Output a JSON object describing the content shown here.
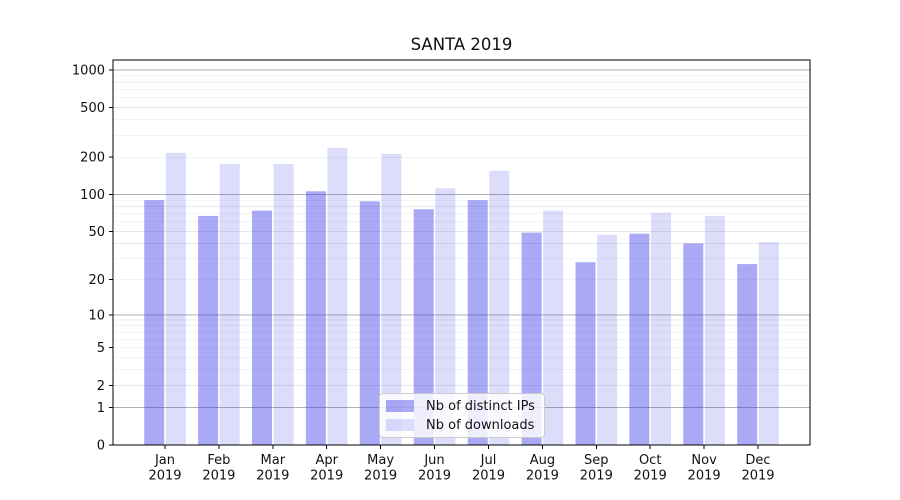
{
  "chart_data": {
    "type": "bar",
    "title": "SANTA 2019",
    "categories": [
      "Jan",
      "Feb",
      "Mar",
      "Apr",
      "May",
      "Jun",
      "Jul",
      "Aug",
      "Sep",
      "Oct",
      "Nov",
      "Dec"
    ],
    "year_label": "2019",
    "series": [
      {
        "name": "Nb of distinct IPs",
        "values": [
          90,
          67,
          74,
          106,
          88,
          76,
          90,
          49,
          28,
          48,
          40,
          27
        ]
      },
      {
        "name": "Nb of downloads",
        "values": [
          216,
          176,
          176,
          238,
          212,
          112,
          155,
          74,
          47,
          71,
          67,
          41
        ]
      }
    ],
    "xlabel": "",
    "ylabel": "",
    "yscale": "symlog  y ~ log10(value+1)",
    "ylim": [
      0,
      1200
    ],
    "y_ticks": [
      0,
      1,
      2,
      5,
      10,
      20,
      50,
      100,
      200,
      500,
      1000
    ],
    "grid_major_values": [
      1,
      10,
      100,
      1000
    ],
    "grid_minor_values": [
      2,
      3,
      4,
      5,
      6,
      7,
      8,
      9,
      20,
      30,
      40,
      50,
      60,
      70,
      80,
      90,
      200,
      300,
      400,
      500,
      600,
      700,
      800,
      900
    ],
    "grid": "horizontal, major and minor",
    "legend_position": "lower center, inside plot"
  },
  "colors": {
    "bar_distinct_ips": "rgba(50,50,230,0.42)",
    "bar_downloads": "rgba(50,50,230,0.17)",
    "grid_major": "#b0b0b0",
    "grid_minor": "#e9e9e9",
    "axis": "#000000",
    "text": "#111111",
    "legend_border": "#cccccc",
    "legend_bg": "rgba(255,255,255,0.8)"
  }
}
